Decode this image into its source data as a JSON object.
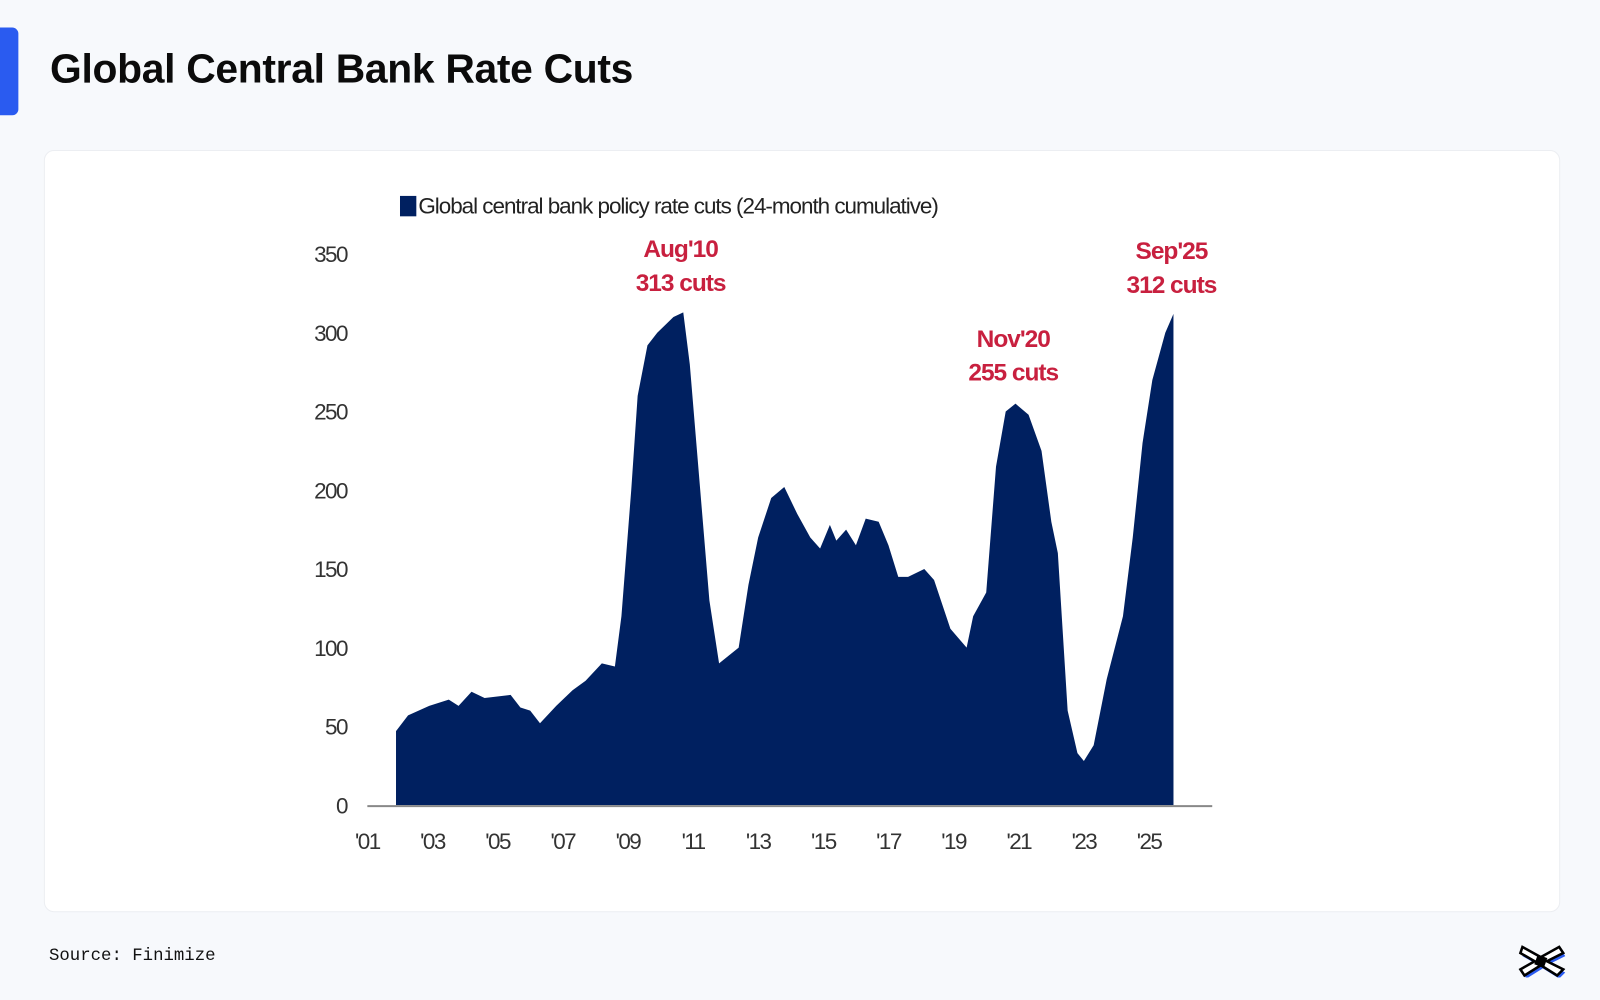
{
  "header": {
    "title": "Global Central Bank Rate Cuts"
  },
  "footer": {
    "source": "Source: Finimize",
    "logo_icon": "finimize-logo-icon"
  },
  "colors": {
    "accent": "#2a5bf0",
    "series": "#002060",
    "annotation": "#c8203f"
  },
  "chart_data": {
    "type": "area",
    "title": "",
    "xlabel": "",
    "ylabel": "",
    "legend": {
      "position": "top-left",
      "entries": [
        "Global central bank policy rate cuts (24-month cumulative)"
      ]
    },
    "xlim": [
      2001,
      2027
    ],
    "ylim": [
      0,
      350
    ],
    "grid": false,
    "x_ticks": [
      "'01",
      "'03",
      "'05",
      "'07",
      "'09",
      "'11",
      "'13",
      "'15",
      "'17",
      "'19",
      "'21",
      "'23",
      "'25"
    ],
    "y_ticks": [
      "0",
      "50",
      "100",
      "150",
      "200",
      "250",
      "300",
      "350"
    ],
    "series": [
      {
        "name": "Global central bank policy rate cuts (24-month cumulative)",
        "x": [
          2001.88,
          2002.25,
          2002.9,
          2003.5,
          2003.8,
          2004.2,
          2004.6,
          2005.4,
          2005.7,
          2006.0,
          2006.3,
          2006.8,
          2007.3,
          2007.7,
          2008.2,
          2008.6,
          2008.8,
          2009.1,
          2009.3,
          2009.6,
          2009.9,
          2010.4,
          2010.7,
          2010.9,
          2011.1,
          2011.5,
          2011.8,
          2012.1,
          2012.4,
          2012.7,
          2013.0,
          2013.4,
          2013.8,
          2014.2,
          2014.6,
          2014.9,
          2015.2,
          2015.4,
          2015.7,
          2016.0,
          2016.3,
          2016.7,
          2017.0,
          2017.3,
          2017.6,
          2018.1,
          2018.4,
          2018.9,
          2019.4,
          2019.6,
          2020.0,
          2020.3,
          2020.6,
          2020.9,
          2021.3,
          2021.7,
          2022.0,
          2022.2,
          2022.5,
          2022.8,
          2023.0,
          2023.3,
          2023.7,
          2024.2,
          2024.5,
          2024.8,
          2025.1,
          2025.5,
          2025.75
        ],
        "values": [
          47,
          57,
          63,
          67,
          63,
          72,
          68,
          70,
          62,
          60,
          52,
          63,
          73,
          79,
          90,
          88,
          120,
          200,
          260,
          292,
          300,
          310,
          313,
          280,
          230,
          130,
          90,
          95,
          100,
          140,
          170,
          195,
          202,
          185,
          170,
          163,
          178,
          168,
          175,
          165,
          182,
          180,
          165,
          145,
          145,
          150,
          143,
          112,
          100,
          120,
          135,
          215,
          250,
          255,
          248,
          225,
          180,
          160,
          60,
          33,
          28,
          38,
          80,
          120,
          170,
          230,
          270,
          300,
          312
        ]
      }
    ],
    "annotations": [
      {
        "line1": "Aug'10",
        "line2": "313 cuts",
        "x": 2010.6,
        "y": 313
      },
      {
        "line1": "Nov'20",
        "line2": "255 cuts",
        "x": 2020.9,
        "y": 255
      },
      {
        "line1": "Sep'25",
        "line2": "312 cuts",
        "x": 2025.7,
        "y": 312
      }
    ]
  }
}
